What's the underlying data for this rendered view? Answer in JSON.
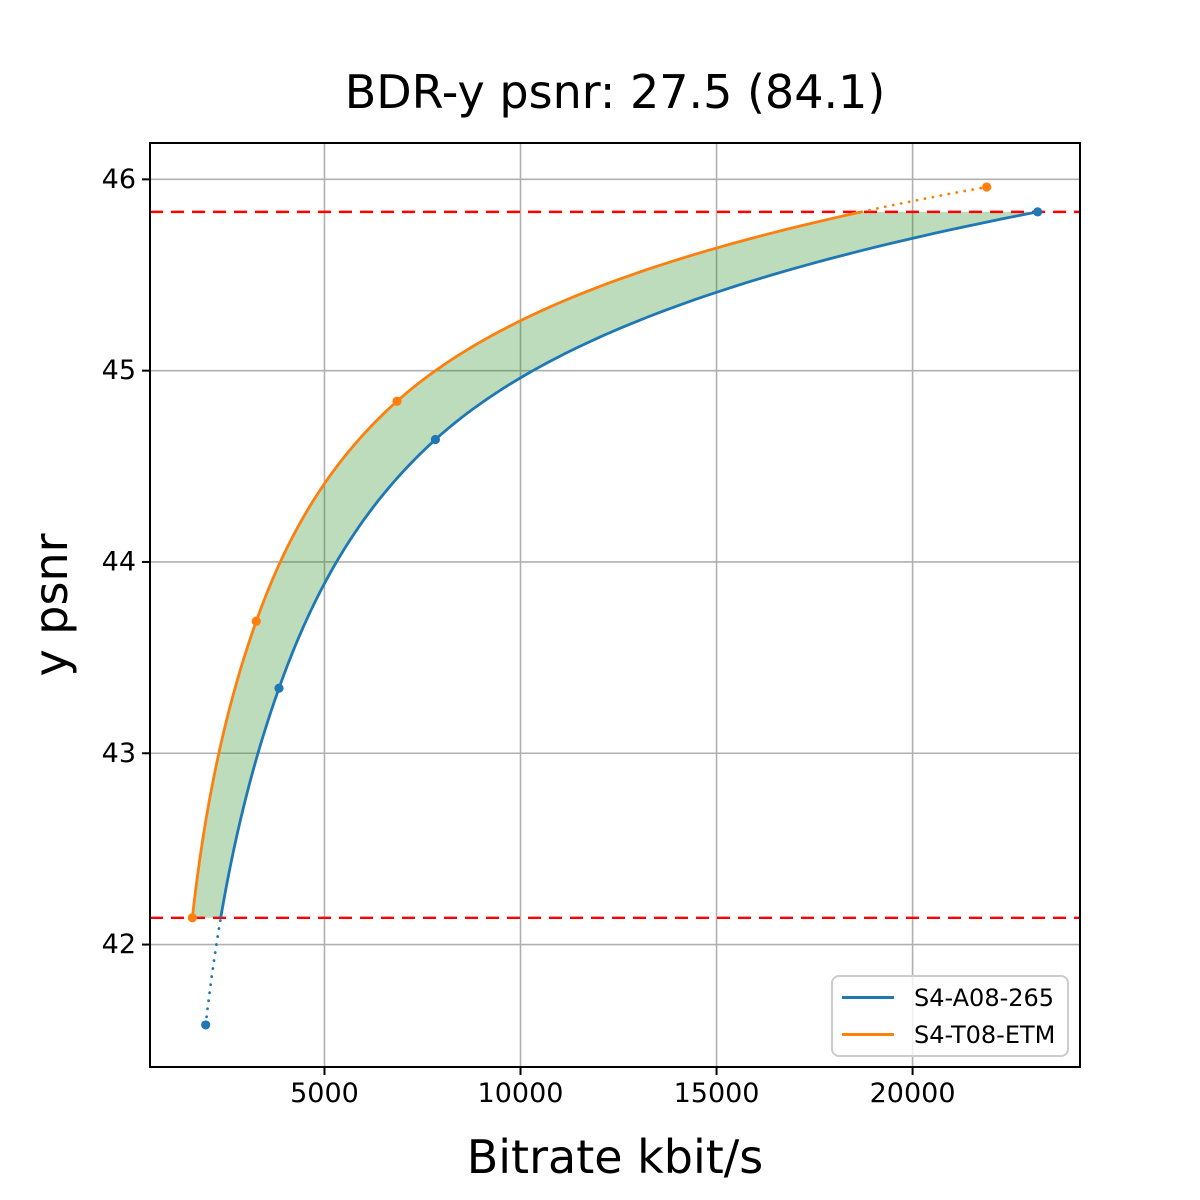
{
  "chart_data": {
    "type": "line",
    "title": "BDR-y psnr: 27.5 (84.1)",
    "xlabel": "Bitrate kbit/s",
    "ylabel": "y psnr",
    "xlim": [
      550,
      24270
    ],
    "ylim": [
      41.36,
      46.19
    ],
    "xticks": [
      5000,
      10000,
      15000,
      20000
    ],
    "xtick_labels": [
      "5000",
      "10000",
      "15000",
      "20000"
    ],
    "yticks": [
      42,
      43,
      44,
      45,
      46
    ],
    "ytick_labels": [
      "42",
      "43",
      "44",
      "45",
      "46"
    ],
    "grid": true,
    "grid_color": "#b0b0b0",
    "axis_color": "#000000",
    "series": [
      {
        "name": "S4-A08-265",
        "color": "#1f77b4",
        "marker": "circle",
        "points": [
          [
            1970,
            41.58
          ],
          [
            3840,
            43.34
          ],
          [
            7830,
            44.64
          ],
          [
            23190,
            45.83
          ]
        ]
      },
      {
        "name": "S4-T08-ETM",
        "color": "#ff7f0e",
        "marker": "circle",
        "points": [
          [
            1630,
            42.14
          ],
          [
            3260,
            43.69
          ],
          [
            6850,
            44.84
          ],
          [
            21890,
            45.96
          ]
        ]
      }
    ],
    "hlines": {
      "color": "#ff0000",
      "style": "dashed",
      "values": [
        45.83,
        42.14
      ]
    },
    "fill_between": {
      "color": "#228b22",
      "opacity": 0.3,
      "psnr_range": [
        42.14,
        45.83
      ]
    },
    "legend": {
      "position": "lower right",
      "entries": [
        "S4-A08-265",
        "S4-T08-ETM"
      ]
    }
  }
}
